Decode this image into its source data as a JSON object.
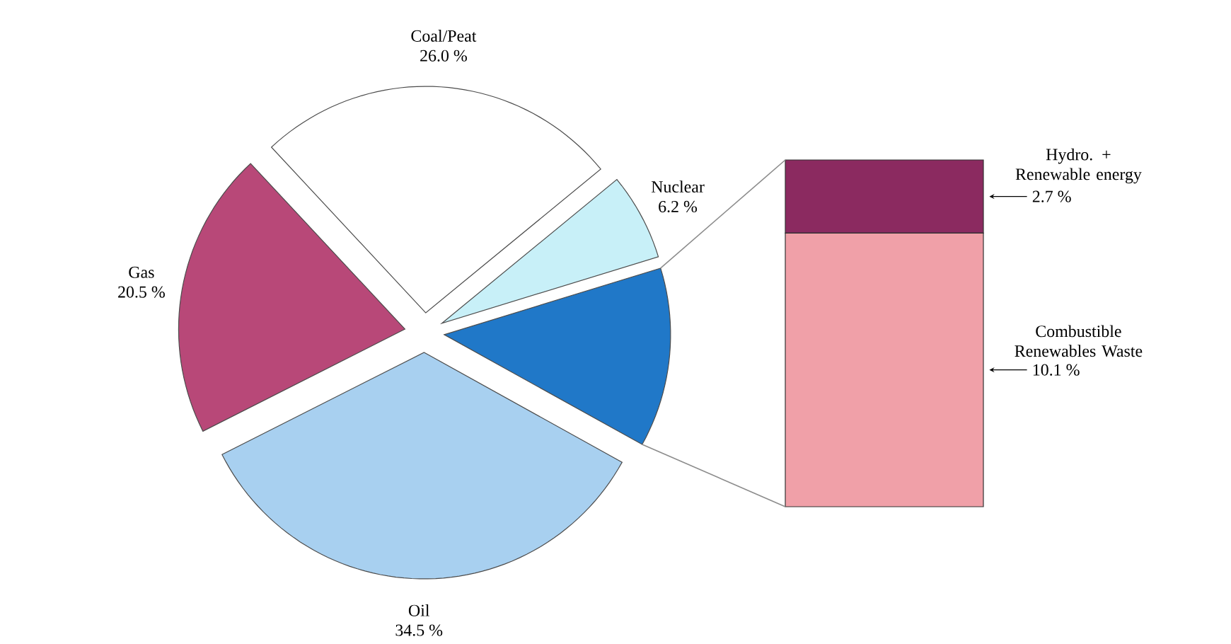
{
  "chart_data": [
    {
      "type": "pie",
      "categories": [
        "Coal/Peat",
        "Nuclear",
        null,
        "Oil",
        "Gas"
      ],
      "values": [
        26.0,
        6.2,
        12.8,
        34.5,
        20.5
      ],
      "colors": [
        "#ffffff",
        "#c8f0f8",
        "#2078c8",
        "#a8d0f0",
        "#b84878"
      ],
      "value_labels": [
        "26.0 %",
        "6.2 %",
        null,
        "34.5 %",
        "20.5 %"
      ]
    },
    {
      "type": "bar",
      "stacked": true,
      "categories": [
        null
      ],
      "series": [
        {
          "name": "Combustible Renewables Waste",
          "color": "#f0a0a8",
          "values": [
            10.1
          ],
          "value_labels": [
            "10.1 %"
          ]
        },
        {
          "name": "Hydro. + Renewable energy",
          "color": "#8b2a60",
          "values": [
            2.7
          ],
          "value_labels": [
            "2.7 %"
          ]
        }
      ]
    }
  ]
}
